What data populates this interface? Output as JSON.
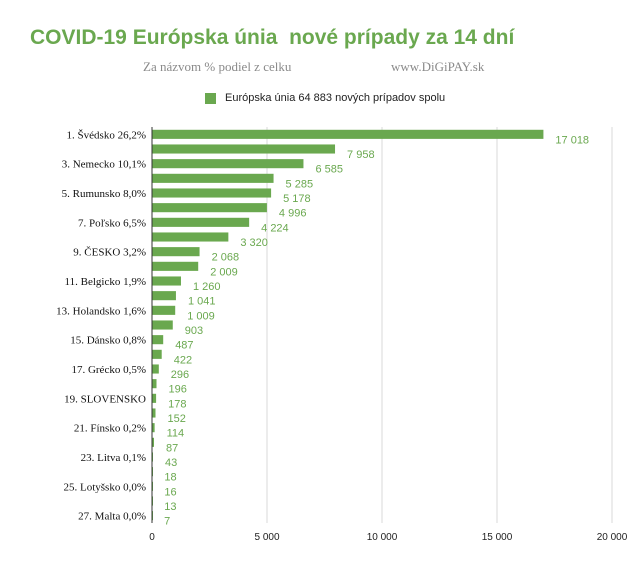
{
  "title": "COVID-19 Európska únia  nové prípady za 14 dní",
  "subtitle_left": "Za názvom % podiel z celku",
  "subtitle_right": "www.DiGiPAY.sk",
  "colors": {
    "bar": "#6aa84f",
    "title": "#6aa84f",
    "grid": "#d9d9d9"
  },
  "chart_data": {
    "type": "bar",
    "orientation": "horizontal",
    "legend": {
      "position": "top",
      "entries": [
        "Európska únia 64 883 nových prípadov spolu"
      ]
    },
    "categories": [
      "1. Švédsko 26,2%",
      "",
      "3. Nemecko 10,1%",
      "",
      "5. Rumunsko 8,0%",
      "",
      "7. Poľsko 6,5%",
      "",
      "9. ČESKO 3,2%",
      "",
      "11. Belgicko 1,9%",
      "",
      "13. Holandsko 1,6%",
      "",
      "15. Dánsko 0,8%",
      "",
      "17. Grécko 0,5%",
      "",
      "19. SLOVENSKO",
      "",
      "21. Fínsko 0,2%",
      "",
      "23. Litva 0,1%",
      "",
      "25. Lotyšsko 0,0%",
      "",
      "27. Malta 0,0%"
    ],
    "series": [
      {
        "name": "Európska únia 64 883 nových prípadov spolu",
        "values": [
          17018,
          7958,
          6585,
          5285,
          5178,
          4996,
          4224,
          3320,
          2068,
          2009,
          1260,
          1041,
          1009,
          903,
          487,
          422,
          296,
          196,
          178,
          152,
          114,
          87,
          43,
          18,
          16,
          13,
          7
        ],
        "value_labels": [
          "17 018",
          "7 958",
          "6 585",
          "5 285",
          "5 178",
          "4 996",
          "4 224",
          "3 320",
          "2 068",
          "2 009",
          "1 260",
          "1 041",
          "1 009",
          "903",
          "487",
          "422",
          "296",
          "196",
          "178",
          "152",
          "114",
          "87",
          "43",
          "18",
          "16",
          "13",
          "7"
        ]
      }
    ],
    "xlim": [
      0,
      20000
    ],
    "x_ticks": [
      0,
      5000,
      10000,
      15000,
      20000
    ],
    "x_tick_labels": [
      "0",
      "5 000",
      "10 000",
      "15 000",
      "20 000"
    ],
    "grid": true
  }
}
